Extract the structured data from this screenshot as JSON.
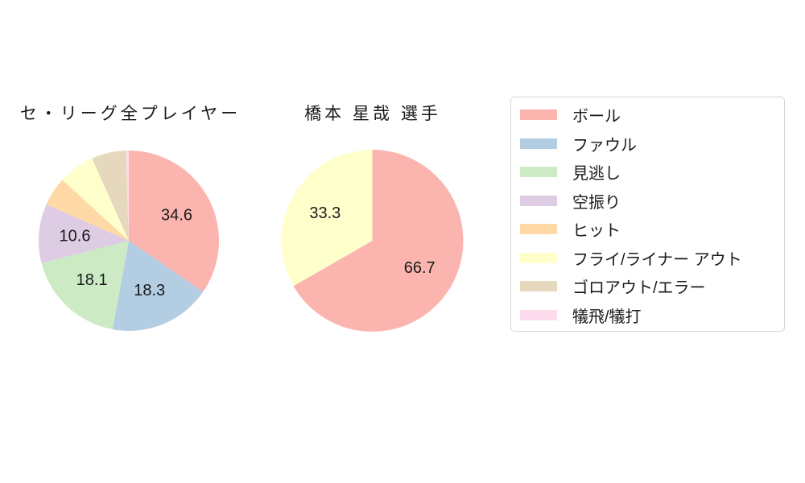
{
  "palette": {
    "ball": "#fbb4ae",
    "foul": "#b3cde3",
    "called_strike": "#ccebc5",
    "swinging_strike": "#decbe4",
    "hit": "#fed9a6",
    "fly_liner_out": "#ffffcc",
    "groundout_error": "#e5d8bd",
    "sac_fly_bunt": "#fddaec"
  },
  "chart_data": [
    {
      "type": "pie",
      "title": "セ・リーグ全プレイヤー",
      "start_angle": "top",
      "direction": "clockwise",
      "categories": [
        "ボール",
        "ファウル",
        "見逃し",
        "空振り",
        "ヒット",
        "フライ/ライナー アウト",
        "ゴロアウト/エラー",
        "犠飛/犠打"
      ],
      "values": [
        34.6,
        18.3,
        18.1,
        10.6,
        5.2,
        6.5,
        6.2,
        0.5
      ],
      "labels": [
        "34.6",
        "18.3",
        "18.1",
        "10.6",
        "",
        "",
        "",
        ""
      ],
      "colors": [
        "#fbb4ae",
        "#b3cde3",
        "#ccebc5",
        "#decbe4",
        "#fed9a6",
        "#ffffcc",
        "#e5d8bd",
        "#fddaec"
      ],
      "label_distance": 0.6
    },
    {
      "type": "pie",
      "title": "橋本 星哉  選手",
      "start_angle": "top",
      "direction": "clockwise",
      "categories": [
        "ボール",
        "フライ/ライナー アウト"
      ],
      "values": [
        66.7,
        33.3
      ],
      "labels": [
        "66.7",
        "33.3"
      ],
      "colors": [
        "#fbb4ae",
        "#ffffcc"
      ],
      "label_distance": 0.6
    }
  ],
  "legend": {
    "position": "right",
    "entries": [
      {
        "label": "ボール",
        "color": "#fbb4ae"
      },
      {
        "label": "ファウル",
        "color": "#b3cde3"
      },
      {
        "label": "見逃し",
        "color": "#ccebc5"
      },
      {
        "label": "空振り",
        "color": "#decbe4"
      },
      {
        "label": "ヒット",
        "color": "#fed9a6"
      },
      {
        "label": "フライ/ライナー アウト",
        "color": "#ffffcc"
      },
      {
        "label": "ゴロアウト/エラー",
        "color": "#e5d8bd"
      },
      {
        "label": "犠飛/犠打",
        "color": "#fddaec"
      }
    ]
  },
  "text_color": "#1a1a1a"
}
